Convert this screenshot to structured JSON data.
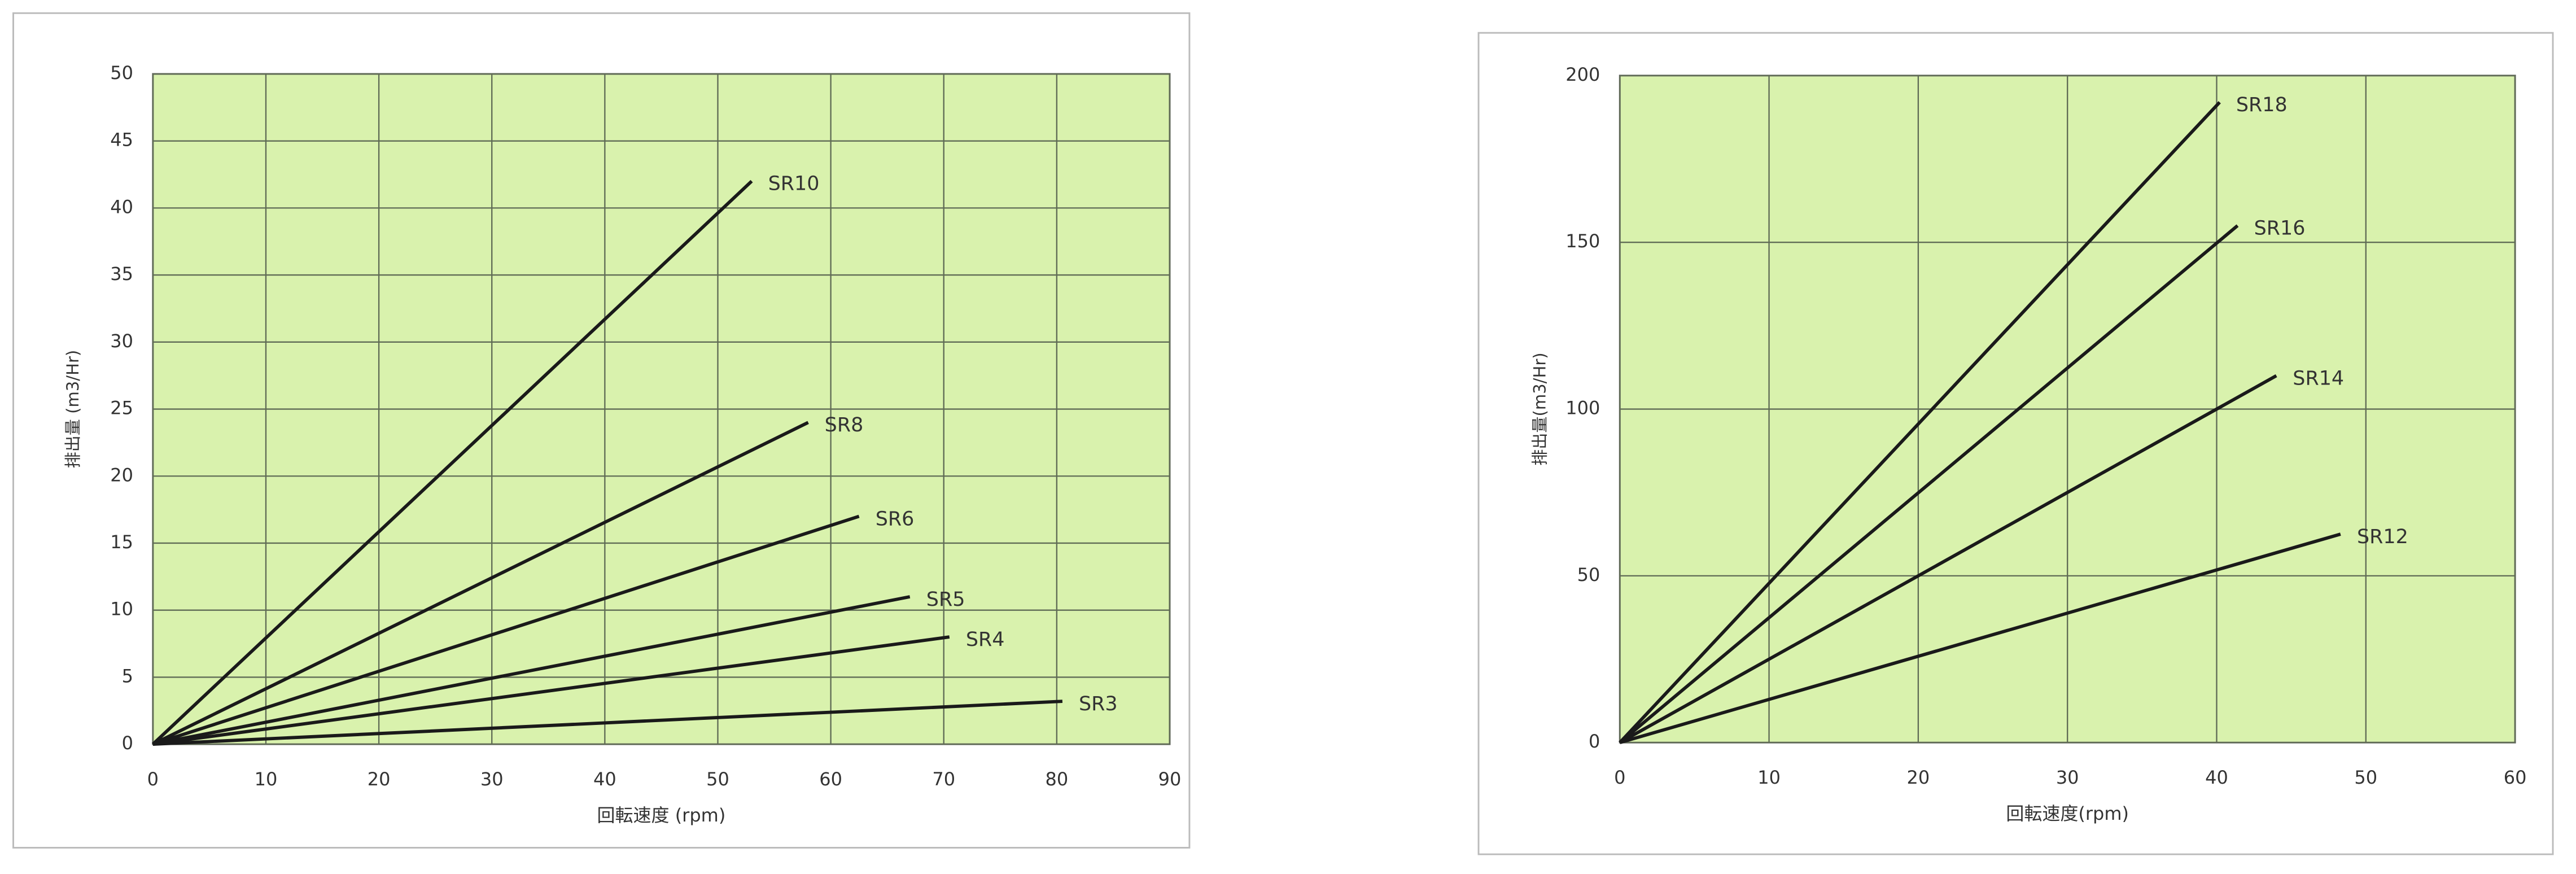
{
  "chart_data": [
    {
      "type": "line",
      "x_label": "回転速度 (rpm)",
      "y_label": "排出量 (m3/Hr)",
      "xlim": [
        0,
        90
      ],
      "xticks": [
        0,
        10,
        20,
        30,
        40,
        50,
        60,
        70,
        80,
        90
      ],
      "ylim": [
        0,
        50
      ],
      "yticks": [
        0,
        5,
        10,
        15,
        20,
        25,
        30,
        35,
        40,
        45,
        50
      ],
      "grid": true,
      "series": [
        {
          "name": "SR10",
          "color": "#1a1a1a",
          "x": [
            0,
            53
          ],
          "values": [
            0,
            42
          ]
        },
        {
          "name": "SR8",
          "color": "#1a1a1a",
          "x": [
            0,
            58
          ],
          "values": [
            0,
            24
          ]
        },
        {
          "name": "SR6",
          "color": "#1a1a1a",
          "x": [
            0,
            62.5
          ],
          "values": [
            0,
            17
          ]
        },
        {
          "name": "SR5",
          "color": "#1a1a1a",
          "x": [
            0,
            67
          ],
          "values": [
            0,
            11
          ]
        },
        {
          "name": "SR4",
          "color": "#1a1a1a",
          "x": [
            0,
            70.5
          ],
          "values": [
            0,
            8
          ]
        },
        {
          "name": "SR3",
          "color": "#1a1a1a",
          "x": [
            0,
            80.5
          ],
          "values": [
            0,
            3.2
          ]
        }
      ]
    },
    {
      "type": "line",
      "x_label": "回転速度(rpm)",
      "y_label": "排出量(m3/Hr)",
      "xlim": [
        0,
        60
      ],
      "xticks": [
        0,
        10,
        20,
        30,
        40,
        50,
        60
      ],
      "ylim": [
        0,
        200
      ],
      "yticks": [
        0,
        50,
        100,
        150,
        200
      ],
      "grid": true,
      "series": [
        {
          "name": "SR18",
          "color": "#1a1a1a",
          "x": [
            0,
            40.2
          ],
          "values": [
            0,
            192
          ]
        },
        {
          "name": "SR16",
          "color": "#1a1a1a",
          "x": [
            0,
            41.4
          ],
          "values": [
            0,
            155
          ]
        },
        {
          "name": "SR14",
          "color": "#1a1a1a",
          "x": [
            0,
            44
          ],
          "values": [
            0,
            110
          ]
        },
        {
          "name": "SR12",
          "color": "#1a1a1a",
          "x": [
            0,
            48.3
          ],
          "values": [
            0,
            62.5
          ]
        }
      ]
    }
  ]
}
